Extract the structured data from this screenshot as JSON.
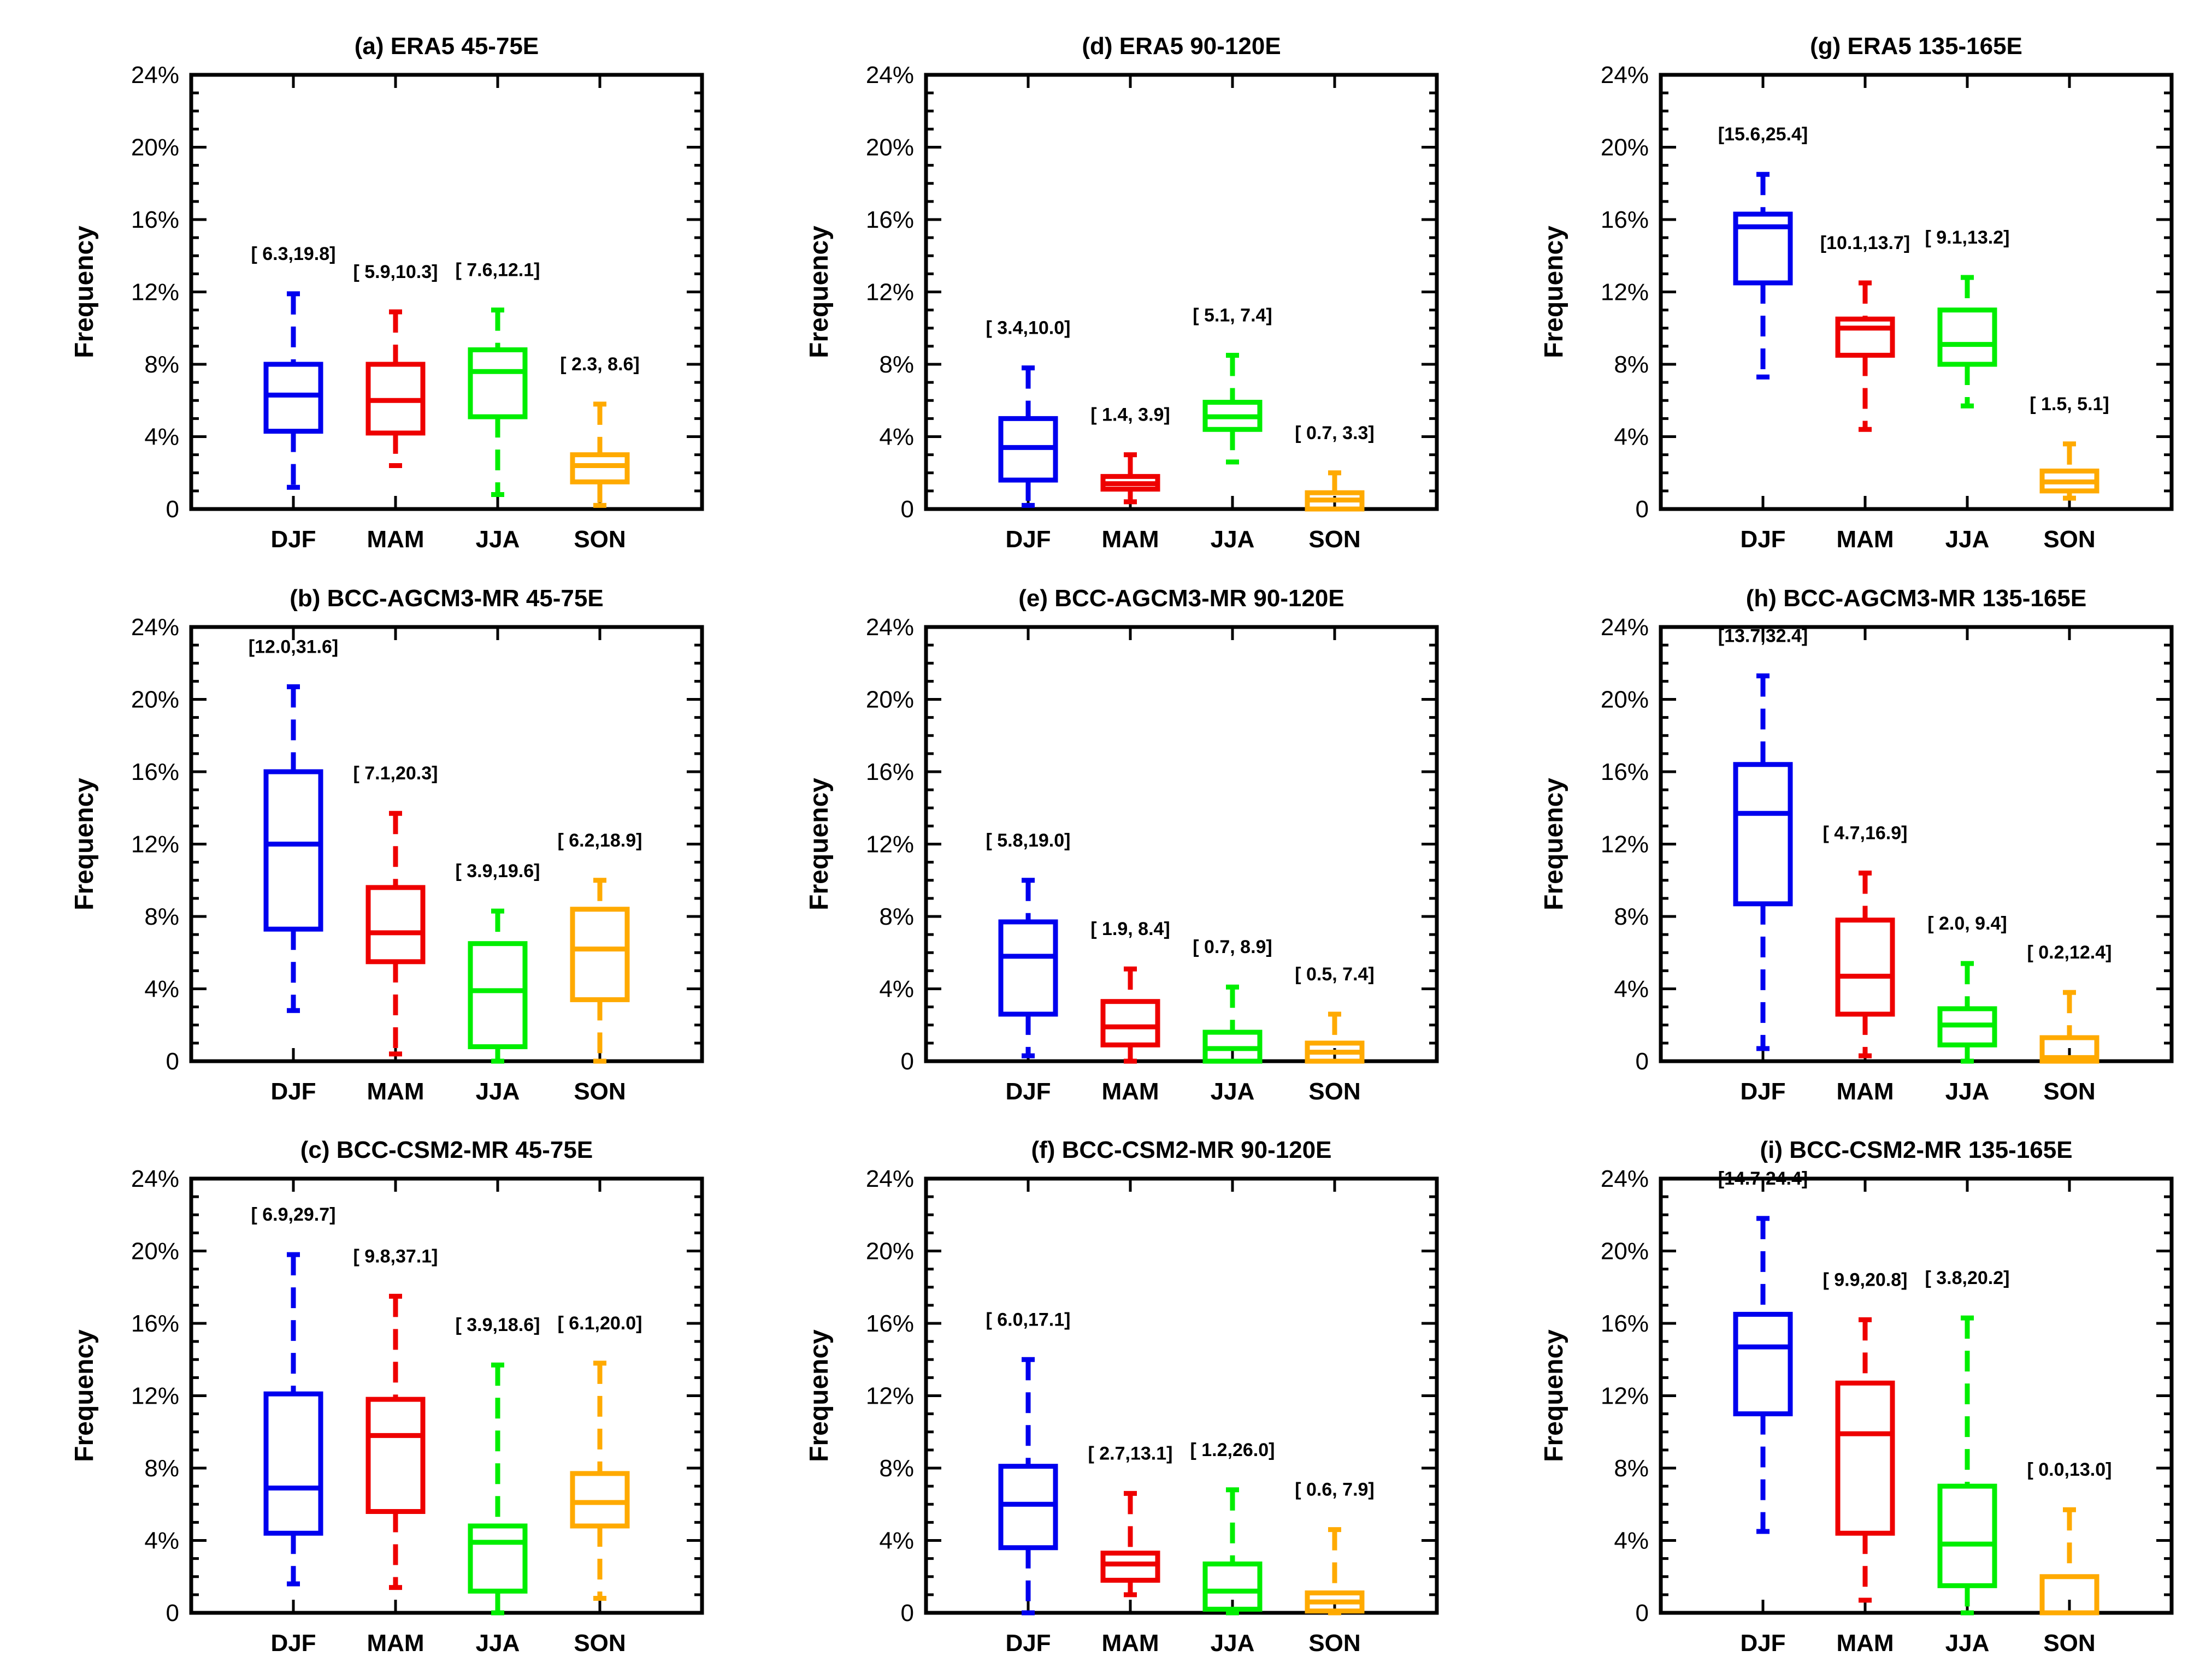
{
  "chart_data": [
    {
      "id": "a",
      "type": "box",
      "title": "(a)  ERA5    45-75E",
      "ylabel": "Frequency",
      "ylim": [
        0,
        24
      ],
      "yticks": [
        "0",
        "4%",
        "8%",
        "12%",
        "16%",
        "20%",
        "24%"
      ],
      "categories": [
        "DJF",
        "MAM",
        "JJA",
        "SON"
      ],
      "series": [
        {
          "name": "DJF",
          "color": "#0000ee",
          "whisker_low": 1.2,
          "q1": 4.3,
          "median": 6.3,
          "q3": 8.0,
          "whisker_high": 11.9,
          "range_label": "[ 6.3,19.8]"
        },
        {
          "name": "MAM",
          "color": "#ee0000",
          "whisker_low": 2.4,
          "q1": 4.2,
          "median": 6.0,
          "q3": 8.0,
          "whisker_high": 10.9,
          "range_label": "[ 5.9,10.3]"
        },
        {
          "name": "JJA",
          "color": "#00ee00",
          "whisker_low": 0.8,
          "q1": 5.1,
          "median": 7.6,
          "q3": 8.8,
          "whisker_high": 11.0,
          "range_label": "[ 7.6,12.1]"
        },
        {
          "name": "SON",
          "color": "#ffaa00",
          "whisker_low": 0.2,
          "q1": 1.5,
          "median": 2.4,
          "q3": 3.0,
          "whisker_high": 5.8,
          "range_label": "[ 2.3, 8.6]"
        }
      ]
    },
    {
      "id": "d",
      "type": "box",
      "title": "(d)  ERA5    90-120E",
      "ylabel": "Frequency",
      "ylim": [
        0,
        24
      ],
      "yticks": [
        "0",
        "4%",
        "8%",
        "12%",
        "16%",
        "20%",
        "24%"
      ],
      "categories": [
        "DJF",
        "MAM",
        "JJA",
        "SON"
      ],
      "series": [
        {
          "name": "DJF",
          "color": "#0000ee",
          "whisker_low": 0.2,
          "q1": 1.6,
          "median": 3.4,
          "q3": 5.0,
          "whisker_high": 7.8,
          "range_label": "[ 3.4,10.0]"
        },
        {
          "name": "MAM",
          "color": "#ee0000",
          "whisker_low": 0.4,
          "q1": 1.1,
          "median": 1.4,
          "q3": 1.8,
          "whisker_high": 3.0,
          "range_label": "[ 1.4, 3.9]"
        },
        {
          "name": "JJA",
          "color": "#00ee00",
          "whisker_low": 2.6,
          "q1": 4.4,
          "median": 5.1,
          "q3": 5.9,
          "whisker_high": 8.5,
          "range_label": "[ 5.1, 7.4]"
        },
        {
          "name": "SON",
          "color": "#ffaa00",
          "whisker_low": 0.0,
          "q1": 0.0,
          "median": 0.5,
          "q3": 0.9,
          "whisker_high": 2.0,
          "range_label": "[ 0.7, 3.3]"
        }
      ]
    },
    {
      "id": "g",
      "type": "box",
      "title": "(g)  ERA5    135-165E",
      "ylabel": "Frequency",
      "ylim": [
        0,
        24
      ],
      "yticks": [
        "0",
        "4%",
        "8%",
        "12%",
        "16%",
        "20%",
        "24%"
      ],
      "categories": [
        "DJF",
        "MAM",
        "JJA",
        "SON"
      ],
      "series": [
        {
          "name": "DJF",
          "color": "#0000ee",
          "whisker_low": 7.3,
          "q1": 12.5,
          "median": 15.6,
          "q3": 16.3,
          "whisker_high": 18.5,
          "range_label": "[15.6,25.4]"
        },
        {
          "name": "MAM",
          "color": "#ee0000",
          "whisker_low": 4.4,
          "q1": 8.5,
          "median": 10.0,
          "q3": 10.5,
          "whisker_high": 12.5,
          "range_label": "[10.1,13.7]"
        },
        {
          "name": "JJA",
          "color": "#00ee00",
          "whisker_low": 5.7,
          "q1": 8.0,
          "median": 9.1,
          "q3": 11.0,
          "whisker_high": 12.8,
          "range_label": "[ 9.1,13.2]"
        },
        {
          "name": "SON",
          "color": "#ffaa00",
          "whisker_low": 0.6,
          "q1": 1.0,
          "median": 1.5,
          "q3": 2.1,
          "whisker_high": 3.6,
          "range_label": "[ 1.5, 5.1]"
        }
      ]
    },
    {
      "id": "b",
      "type": "box",
      "title": "(b)  BCC-AGCM3-MR    45-75E",
      "ylabel": "Frequency",
      "ylim": [
        0,
        24
      ],
      "yticks": [
        "0",
        "4%",
        "8%",
        "12%",
        "16%",
        "20%",
        "24%"
      ],
      "categories": [
        "DJF",
        "MAM",
        "JJA",
        "SON"
      ],
      "series": [
        {
          "name": "DJF",
          "color": "#0000ee",
          "whisker_low": 2.8,
          "q1": 7.3,
          "median": 12.0,
          "q3": 16.0,
          "whisker_high": 20.7,
          "range_label": "[12.0,31.6]"
        },
        {
          "name": "MAM",
          "color": "#ee0000",
          "whisker_low": 0.4,
          "q1": 5.5,
          "median": 7.1,
          "q3": 9.6,
          "whisker_high": 13.7,
          "range_label": "[ 7.1,20.3]"
        },
        {
          "name": "JJA",
          "color": "#00ee00",
          "whisker_low": 0.0,
          "q1": 0.8,
          "median": 3.9,
          "q3": 6.5,
          "whisker_high": 8.3,
          "range_label": "[ 3.9,19.6]"
        },
        {
          "name": "SON",
          "color": "#ffaa00",
          "whisker_low": 0.0,
          "q1": 3.4,
          "median": 6.2,
          "q3": 8.4,
          "whisker_high": 10.0,
          "range_label": "[ 6.2,18.9]"
        }
      ]
    },
    {
      "id": "e",
      "type": "box",
      "title": "(e)  BCC-AGCM3-MR    90-120E",
      "ylabel": "Frequency",
      "ylim": [
        0,
        24
      ],
      "yticks": [
        "0",
        "4%",
        "8%",
        "12%",
        "16%",
        "20%",
        "24%"
      ],
      "categories": [
        "DJF",
        "MAM",
        "JJA",
        "SON"
      ],
      "series": [
        {
          "name": "DJF",
          "color": "#0000ee",
          "whisker_low": 0.3,
          "q1": 2.6,
          "median": 5.8,
          "q3": 7.7,
          "whisker_high": 10.0,
          "range_label": "[ 5.8,19.0]"
        },
        {
          "name": "MAM",
          "color": "#ee0000",
          "whisker_low": 0.0,
          "q1": 0.9,
          "median": 1.9,
          "q3": 3.3,
          "whisker_high": 5.1,
          "range_label": "[ 1.9, 8.4]"
        },
        {
          "name": "JJA",
          "color": "#00ee00",
          "whisker_low": 0.0,
          "q1": 0.0,
          "median": 0.7,
          "q3": 1.6,
          "whisker_high": 4.1,
          "range_label": "[ 0.7, 8.9]"
        },
        {
          "name": "SON",
          "color": "#ffaa00",
          "whisker_low": 0.0,
          "q1": 0.0,
          "median": 0.5,
          "q3": 1.0,
          "whisker_high": 2.6,
          "range_label": "[ 0.5, 7.4]"
        }
      ]
    },
    {
      "id": "h",
      "type": "box",
      "title": "(h)  BCC-AGCM3-MR    135-165E",
      "ylabel": "Frequency",
      "ylim": [
        0,
        24
      ],
      "yticks": [
        "0",
        "4%",
        "8%",
        "12%",
        "16%",
        "20%",
        "24%"
      ],
      "categories": [
        "DJF",
        "MAM",
        "JJA",
        "SON"
      ],
      "series": [
        {
          "name": "DJF",
          "color": "#0000ee",
          "whisker_low": 0.7,
          "q1": 8.7,
          "median": 13.7,
          "q3": 16.4,
          "whisker_high": 21.3,
          "range_label": "[13.7,32.4]"
        },
        {
          "name": "MAM",
          "color": "#ee0000",
          "whisker_low": 0.3,
          "q1": 2.6,
          "median": 4.7,
          "q3": 7.8,
          "whisker_high": 10.4,
          "range_label": "[ 4.7,16.9]"
        },
        {
          "name": "JJA",
          "color": "#00ee00",
          "whisker_low": 0.0,
          "q1": 0.9,
          "median": 2.0,
          "q3": 2.9,
          "whisker_high": 5.4,
          "range_label": "[ 2.0, 9.4]"
        },
        {
          "name": "SON",
          "color": "#ffaa00",
          "whisker_low": 0.0,
          "q1": 0.0,
          "median": 0.2,
          "q3": 1.3,
          "whisker_high": 3.8,
          "range_label": "[ 0.2,12.4]"
        }
      ]
    },
    {
      "id": "c",
      "type": "box",
      "title": "(c)  BCC-CSM2-MR    45-75E",
      "ylabel": "Frequency",
      "ylim": [
        0,
        24
      ],
      "yticks": [
        "0",
        "4%",
        "8%",
        "12%",
        "16%",
        "20%",
        "24%"
      ],
      "categories": [
        "DJF",
        "MAM",
        "JJA",
        "SON"
      ],
      "series": [
        {
          "name": "DJF",
          "color": "#0000ee",
          "whisker_low": 1.6,
          "q1": 4.4,
          "median": 6.9,
          "q3": 12.1,
          "whisker_high": 19.8,
          "range_label": "[ 6.9,29.7]"
        },
        {
          "name": "MAM",
          "color": "#ee0000",
          "whisker_low": 1.4,
          "q1": 5.6,
          "median": 9.8,
          "q3": 11.8,
          "whisker_high": 17.5,
          "range_label": "[ 9.8,37.1]"
        },
        {
          "name": "JJA",
          "color": "#00ee00",
          "whisker_low": 0.0,
          "q1": 1.2,
          "median": 3.9,
          "q3": 4.8,
          "whisker_high": 13.7,
          "range_label": "[ 3.9,18.6]"
        },
        {
          "name": "SON",
          "color": "#ffaa00",
          "whisker_low": 0.8,
          "q1": 4.8,
          "median": 6.1,
          "q3": 7.7,
          "whisker_high": 13.8,
          "range_label": "[ 6.1,20.0]"
        }
      ]
    },
    {
      "id": "f",
      "type": "box",
      "title": "(f)  BCC-CSM2-MR    90-120E",
      "ylabel": "Frequency",
      "ylim": [
        0,
        24
      ],
      "yticks": [
        "0",
        "4%",
        "8%",
        "12%",
        "16%",
        "20%",
        "24%"
      ],
      "categories": [
        "DJF",
        "MAM",
        "JJA",
        "SON"
      ],
      "series": [
        {
          "name": "DJF",
          "color": "#0000ee",
          "whisker_low": 0.0,
          "q1": 3.6,
          "median": 6.0,
          "q3": 8.1,
          "whisker_high": 14.0,
          "range_label": "[ 6.0,17.1]"
        },
        {
          "name": "MAM",
          "color": "#ee0000",
          "whisker_low": 1.0,
          "q1": 1.8,
          "median": 2.7,
          "q3": 3.3,
          "whisker_high": 6.6,
          "range_label": "[ 2.7,13.1]"
        },
        {
          "name": "JJA",
          "color": "#00ee00",
          "whisker_low": 0.0,
          "q1": 0.2,
          "median": 1.2,
          "q3": 2.7,
          "whisker_high": 6.8,
          "range_label": "[ 1.2,26.0]"
        },
        {
          "name": "SON",
          "color": "#ffaa00",
          "whisker_low": 0.0,
          "q1": 0.1,
          "median": 0.6,
          "q3": 1.1,
          "whisker_high": 4.6,
          "range_label": "[ 0.6, 7.9]"
        }
      ]
    },
    {
      "id": "i",
      "type": "box",
      "title": "(i)  BCC-CSM2-MR    135-165E",
      "ylabel": "Frequency",
      "ylim": [
        0,
        24
      ],
      "yticks": [
        "0",
        "4%",
        "8%",
        "12%",
        "16%",
        "20%",
        "24%"
      ],
      "categories": [
        "DJF",
        "MAM",
        "JJA",
        "SON"
      ],
      "series": [
        {
          "name": "DJF",
          "color": "#0000ee",
          "whisker_low": 4.5,
          "q1": 11.0,
          "median": 14.7,
          "q3": 16.5,
          "whisker_high": 21.8,
          "range_label": "[14.7,24.4]"
        },
        {
          "name": "MAM",
          "color": "#ee0000",
          "whisker_low": 0.7,
          "q1": 4.4,
          "median": 9.9,
          "q3": 12.7,
          "whisker_high": 16.2,
          "range_label": "[ 9.9,20.8]"
        },
        {
          "name": "JJA",
          "color": "#00ee00",
          "whisker_low": 0.0,
          "q1": 1.5,
          "median": 3.8,
          "q3": 7.0,
          "whisker_high": 16.3,
          "range_label": "[ 3.8,20.2]"
        },
        {
          "name": "SON",
          "color": "#ffaa00",
          "whisker_low": 0.0,
          "q1": 0.0,
          "median": 0.0,
          "q3": 2.0,
          "whisker_high": 5.7,
          "range_label": "[ 0.0,13.0]"
        }
      ]
    }
  ]
}
